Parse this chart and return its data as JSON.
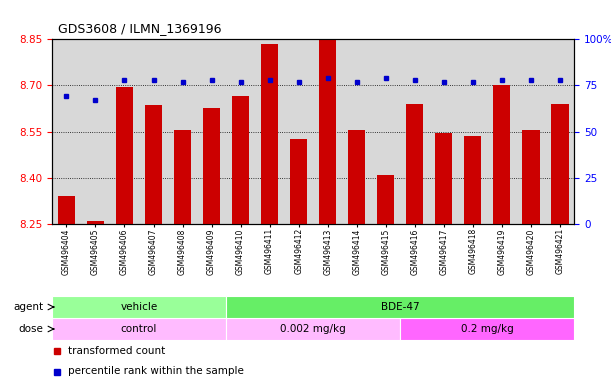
{
  "title": "GDS3608 / ILMN_1369196",
  "samples": [
    "GSM496404",
    "GSM496405",
    "GSM496406",
    "GSM496407",
    "GSM496408",
    "GSM496409",
    "GSM496410",
    "GSM496411",
    "GSM496412",
    "GSM496413",
    "GSM496414",
    "GSM496415",
    "GSM496416",
    "GSM496417",
    "GSM496418",
    "GSM496419",
    "GSM496420",
    "GSM496421"
  ],
  "bar_values": [
    8.34,
    8.26,
    8.695,
    8.635,
    8.555,
    8.625,
    8.665,
    8.835,
    8.525,
    8.855,
    8.555,
    8.41,
    8.64,
    8.545,
    8.535,
    8.7,
    8.555,
    8.64
  ],
  "percentile_values": [
    69,
    67,
    78,
    78,
    77,
    78,
    77,
    78,
    77,
    79,
    77,
    79,
    78,
    77,
    77,
    78,
    78,
    78
  ],
  "ylim_left": [
    8.25,
    8.85
  ],
  "ylim_right": [
    0,
    100
  ],
  "yticks_left": [
    8.25,
    8.4,
    8.55,
    8.7,
    8.85
  ],
  "yticks_right": [
    0,
    25,
    50,
    75,
    100
  ],
  "bar_color": "#CC0000",
  "dot_color": "#0000CC",
  "bar_width": 0.6,
  "agent_labels": [
    {
      "text": "vehicle",
      "start": 0,
      "end": 5,
      "color": "#99FF99"
    },
    {
      "text": "BDE-47",
      "start": 6,
      "end": 17,
      "color": "#66EE66"
    }
  ],
  "dose_labels": [
    {
      "text": "control",
      "start": 0,
      "end": 5,
      "color": "#FFBBFF"
    },
    {
      "text": "0.002 mg/kg",
      "start": 6,
      "end": 11,
      "color": "#FFBBFF"
    },
    {
      "text": "0.2 mg/kg",
      "start": 12,
      "end": 17,
      "color": "#FF66FF"
    }
  ],
  "legend_bar_color": "#CC0000",
  "legend_dot_color": "#0000CC",
  "legend_bar_label": "transformed count",
  "legend_dot_label": "percentile rank within the sample",
  "grid_color": "black",
  "bg_color": "#D8D8D8",
  "fig_width": 6.11,
  "fig_height": 3.84,
  "dpi": 100
}
